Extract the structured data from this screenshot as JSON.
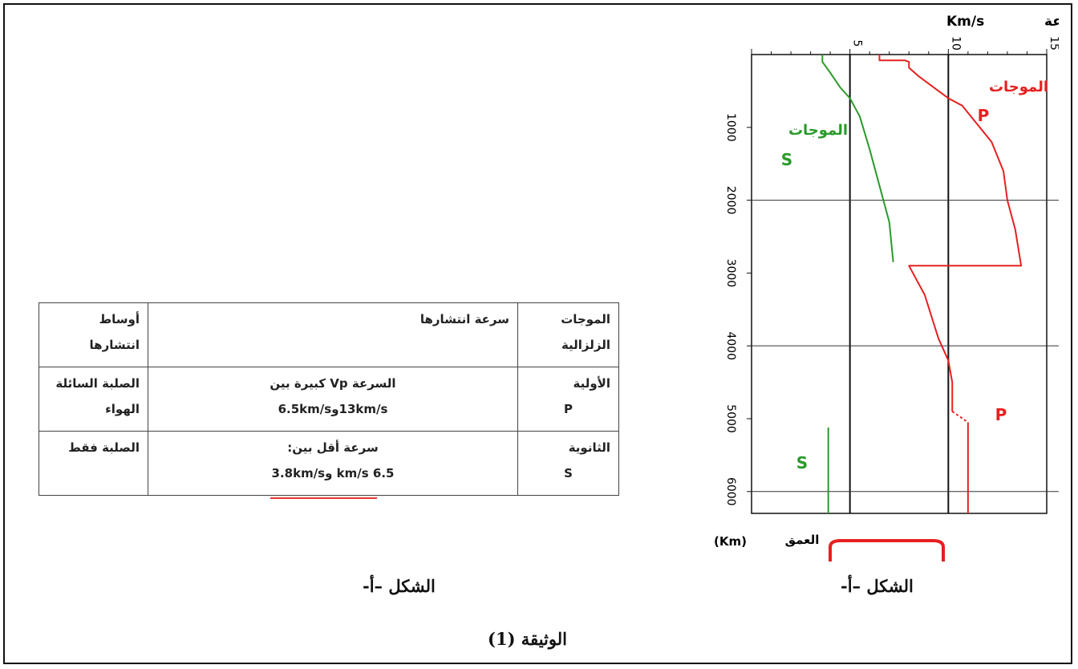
{
  "chart_data": {
    "type": "line",
    "title": "سرعة Km/s",
    "xlabel": "سرعة Km/s",
    "ylabel": "العمق (Km)",
    "xlim": [
      0,
      15
    ],
    "ylim": [
      0,
      6300
    ],
    "x_ticks": [
      "5",
      "10",
      "15"
    ],
    "y_ticks": [
      "1000",
      "2000",
      "3000",
      "4000",
      "5000",
      "6000"
    ],
    "series": [
      {
        "name": "الموجات P",
        "color": "#e62020",
        "points": [
          [
            6.5,
            0
          ],
          [
            6.5,
            80
          ],
          [
            7.8,
            80
          ],
          [
            8,
            100
          ],
          [
            8,
            180
          ],
          [
            8.5,
            300
          ],
          [
            9,
            400
          ],
          [
            10,
            600
          ],
          [
            10.7,
            700
          ],
          [
            11.3,
            900
          ],
          [
            12.2,
            1200
          ],
          [
            12.8,
            1600
          ],
          [
            13,
            2000
          ],
          [
            13.4,
            2400
          ],
          [
            13.7,
            2900
          ],
          [
            8,
            2900
          ],
          [
            8.8,
            3300
          ],
          [
            9.5,
            3900
          ],
          [
            10,
            4200
          ],
          [
            10.2,
            4500
          ],
          [
            10.2,
            4900
          ]
        ]
      },
      {
        "name": "الموجات S",
        "color": "#2a9a2a",
        "points": [
          [
            3.6,
            0
          ],
          [
            3.6,
            100
          ],
          [
            4,
            250
          ],
          [
            4.5,
            450
          ],
          [
            5,
            600
          ],
          [
            5.2,
            700
          ],
          [
            5.5,
            850
          ],
          [
            6,
            1300
          ],
          [
            6.5,
            1800
          ],
          [
            7,
            2300
          ],
          [
            7.2,
            2850
          ]
        ]
      },
      {
        "name": "P",
        "color": "#e62020",
        "points": [
          [
            11,
            5050
          ],
          [
            11,
            6300
          ]
        ]
      },
      {
        "name": "S",
        "color": "#2a9a2a",
        "points": [
          [
            3.9,
            5120
          ],
          [
            3.9,
            6300
          ]
        ]
      }
    ],
    "labels": {
      "p_waves_top": "الموجات",
      "p_letter_top": "P",
      "s_waves": "الموجات",
      "s_letter": "S",
      "p_letter_bottom": "P",
      "s_letter_bottom": "S",
      "speed_label": "سرعة",
      "speed_unit": "Km/s",
      "depth_label": "العمق",
      "depth_unit": "(Km)"
    }
  },
  "table": {
    "header": {
      "wave": "الموجات الزلزالية",
      "speed": "سرعة انتشارها",
      "media": "أوساط انتشارها"
    },
    "rows": [
      {
        "wave": "الأولية",
        "wave_code": "P",
        "speed_line1": "السرعة Vp كبيرة بين",
        "speed_line2": "13km/sو6.5km/s",
        "media": "الصلبة السائلة الهواء"
      },
      {
        "wave": "الثانوية",
        "wave_code": "S",
        "speed_line1": "سرعة أقل بين:",
        "speed_line2": "km/s 6.5 و3.8km/s",
        "media": "الصلبة فقط"
      }
    ]
  },
  "captions": {
    "figure_left": "الشكل –أ-",
    "figure_right": "الشكل –أ-",
    "document": "الوثيقة (1)"
  }
}
